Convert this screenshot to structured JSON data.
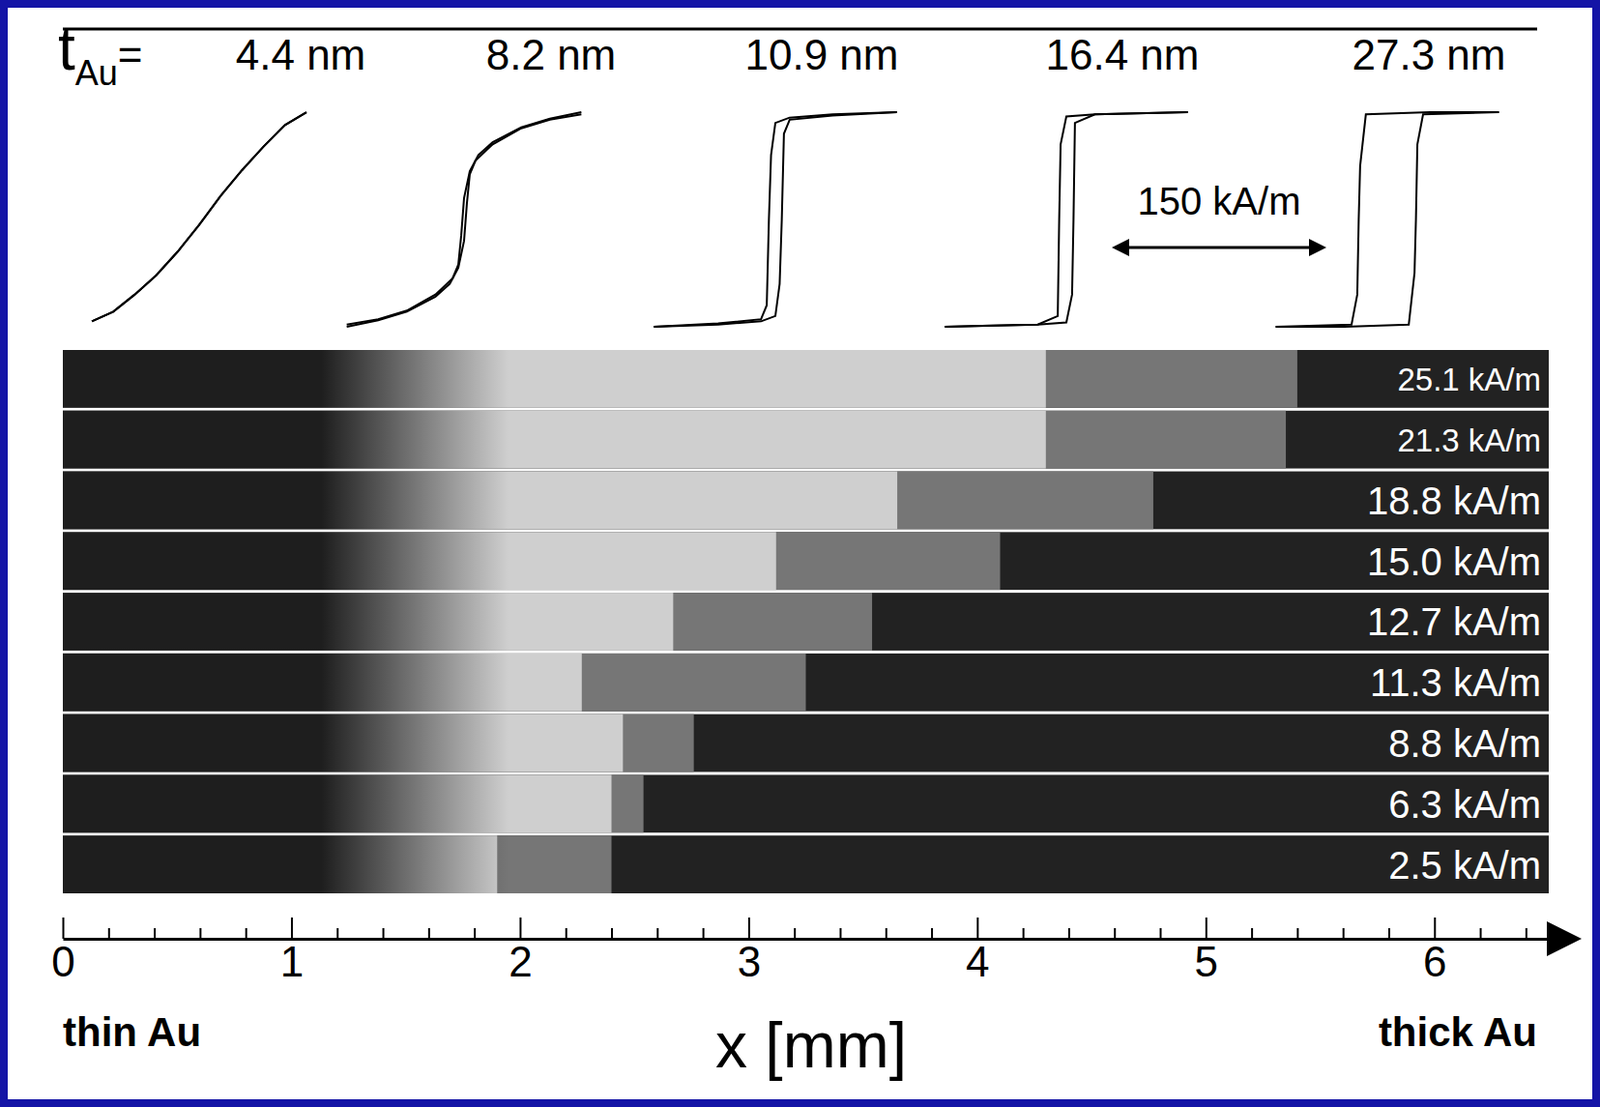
{
  "chart_data": {
    "type": "kerr_strips",
    "thickness_symbol": "t",
    "thickness_subscript": "Au",
    "equals": "=",
    "hlim": [
      -90,
      90
    ],
    "mlim": [
      -1.1,
      1.1
    ],
    "loops": [
      {
        "label": "4.4 nm",
        "ascending": {
          "h": [
            -75,
            -60,
            -45,
            -30,
            -15,
            0,
            15,
            30,
            45,
            60,
            75
          ],
          "m": [
            -0.95,
            -0.86,
            -0.7,
            -0.52,
            -0.3,
            -0.05,
            0.22,
            0.46,
            0.68,
            0.88,
            1.0
          ]
        },
        "descending": {
          "h": [
            75,
            60,
            45,
            30,
            15,
            0,
            -15,
            -30,
            -45,
            -60,
            -75
          ],
          "m": [
            1.0,
            0.88,
            0.68,
            0.46,
            0.22,
            -0.05,
            -0.3,
            -0.52,
            -0.7,
            -0.86,
            -0.95
          ]
        }
      },
      {
        "label": "8.2 nm",
        "ascending": {
          "h": [
            -82,
            -60,
            -40,
            -20,
            -10,
            -4,
            0,
            2,
            4,
            8,
            20,
            40,
            60,
            82
          ],
          "m": [
            -1,
            -0.94,
            -0.86,
            -0.72,
            -0.6,
            -0.45,
            -0.2,
            0.15,
            0.42,
            0.55,
            0.7,
            0.85,
            0.93,
            0.98
          ]
        },
        "descending": {
          "h": [
            82,
            60,
            40,
            20,
            10,
            4,
            0,
            -2,
            -4,
            -8,
            -20,
            -40,
            -60,
            -82
          ],
          "m": [
            1,
            0.94,
            0.86,
            0.72,
            0.6,
            0.45,
            0.2,
            -0.15,
            -0.42,
            -0.55,
            -0.7,
            -0.85,
            -0.93,
            -0.98
          ]
        }
      },
      {
        "label": "10.9 nm",
        "ascending": {
          "h": [
            -85,
            -40,
            -10,
            0,
            3,
            4.5,
            6,
            10,
            40,
            85
          ],
          "m": [
            -1,
            -0.98,
            -0.95,
            -0.9,
            -0.6,
            0,
            0.8,
            0.93,
            0.97,
            1
          ]
        },
        "descending": {
          "h": [
            85,
            40,
            10,
            0,
            -3,
            -4.5,
            -6,
            -10,
            -40,
            -85
          ],
          "m": [
            1,
            0.98,
            0.95,
            0.9,
            0.6,
            0,
            -0.8,
            -0.93,
            -0.97,
            -1
          ]
        }
      },
      {
        "label": "16.4 nm",
        "ascending": {
          "h": [
            -85,
            -20,
            0,
            4,
            5,
            6,
            20,
            85
          ],
          "m": [
            -1,
            -0.98,
            -0.96,
            -0.7,
            0,
            0.9,
            0.98,
            1
          ]
        },
        "descending": {
          "h": [
            85,
            20,
            0,
            -4,
            -5,
            -6,
            -20,
            -85
          ],
          "m": [
            1,
            0.98,
            0.96,
            0.7,
            0,
            -0.9,
            -0.98,
            -1
          ]
        }
      },
      {
        "label": "27.3 nm",
        "ascending": {
          "h": [
            -78,
            -30,
            15,
            19,
            20,
            21,
            25,
            78
          ],
          "m": [
            -1,
            -1,
            -0.98,
            -0.5,
            0,
            0.7,
            0.98,
            1
          ]
        },
        "descending": {
          "h": [
            78,
            30,
            -15,
            -19,
            -20,
            -21,
            -25,
            -78
          ],
          "m": [
            1,
            1,
            0.98,
            0.5,
            0,
            -0.7,
            -0.98,
            -1
          ]
        }
      }
    ],
    "scale_bar": {
      "value": 150,
      "label": "150 kA/m"
    },
    "strips": [
      {
        "label": "25.1 kA/m",
        "switched": 4.3,
        "front": 5.4
      },
      {
        "label": "21.3 kA/m",
        "switched": 4.3,
        "front": 5.35
      },
      {
        "label": "18.8 kA/m",
        "switched": 3.65,
        "front": 4.77
      },
      {
        "label": "15.0 kA/m",
        "switched": 3.12,
        "front": 4.1
      },
      {
        "label": "12.7 kA/m",
        "switched": 2.67,
        "front": 3.54
      },
      {
        "label": "11.3 kA/m",
        "switched": 2.27,
        "front": 3.25
      },
      {
        "label": "8.8 kA/m",
        "switched": 2.45,
        "front": 2.76
      },
      {
        "label": "6.3 kA/m",
        "switched": 2.4,
        "front": 2.54
      },
      {
        "label": "2.5 kA/m",
        "switched": 1.9,
        "front": 2.4
      }
    ],
    "x_label": "x [mm]",
    "xlim": [
      0,
      6.5
    ],
    "xticks": [
      0,
      1,
      2,
      3,
      4,
      5,
      6
    ],
    "minor_xticks": [
      0.2,
      0.4,
      0.6,
      0.8,
      1.2,
      1.4,
      1.6,
      1.8,
      2.2,
      2.4,
      2.6,
      2.8,
      3.2,
      3.4,
      3.6,
      3.8,
      4.2,
      4.4,
      4.6,
      4.8,
      5.2,
      5.4,
      5.6,
      5.8,
      6.2,
      6.4
    ],
    "left_label": "thin Au",
    "right_label": "thick Au"
  }
}
